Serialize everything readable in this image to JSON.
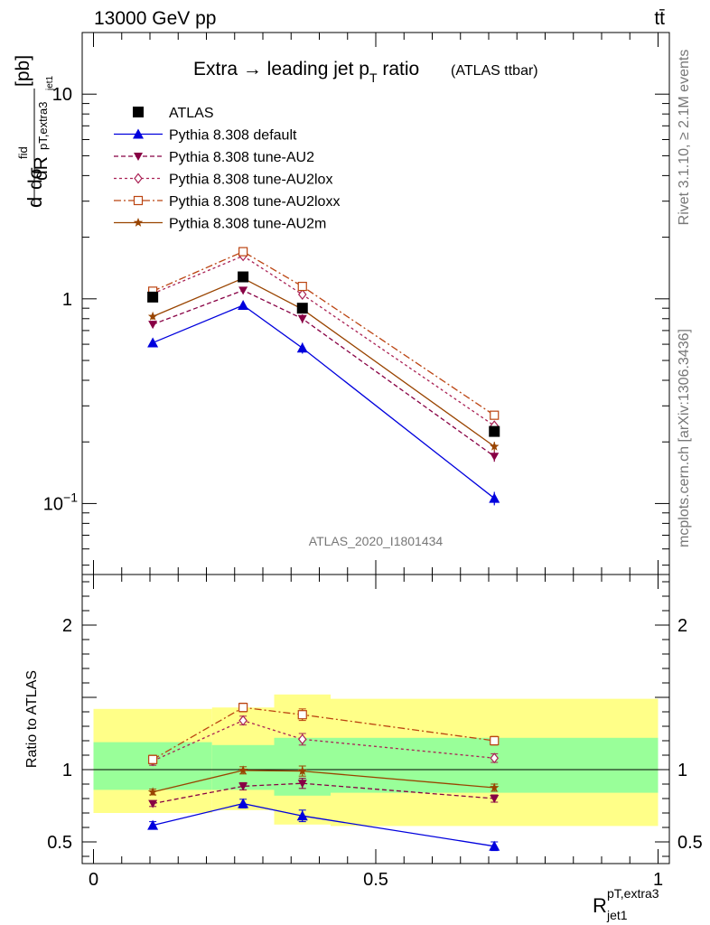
{
  "header": {
    "left": "13000 GeV pp",
    "right": "tt̄"
  },
  "title": {
    "main": "Extra → leading jet p",
    "sub": "T",
    "rest": " ratio",
    "small": "(ATLAS ttbar)"
  },
  "side_labels": {
    "rivet": "Rivet 3.1.10, ≥ 2.1M events",
    "source": "mcplots.cern.ch [arXiv:1306.3436]"
  },
  "analysis_id": "ATLAS_2020_I1801434",
  "y_label": {
    "d": "d",
    "sigma": "dσ",
    "sigma_sup": "fid",
    "sigma_sub": "pT,extra3",
    "sigma_sub2": "jet1",
    "den": "dR",
    "unit": "[pb]"
  },
  "ratio_label": "Ratio to ATLAS",
  "x_label": {
    "main": "R",
    "sup": "pT,extra3",
    "sub": "jet1"
  },
  "top_ticks": [
    {
      "value": 10,
      "label": "10"
    },
    {
      "value": 1,
      "label": "1"
    },
    {
      "value": 0.1,
      "label": "10",
      "sup": "−1"
    }
  ],
  "ratio_ticks": [
    {
      "value": 2,
      "label": "2"
    },
    {
      "value": 1,
      "label": "1"
    },
    {
      "value": 0.5,
      "label": "0.5"
    }
  ],
  "x_ticks": [
    {
      "value": 0,
      "label": "0"
    },
    {
      "value": 0.5,
      "label": "0.5"
    },
    {
      "value": 1,
      "label": "1"
    }
  ],
  "colors": {
    "data": "#000000",
    "default": "#0000dd",
    "au2": "#880044",
    "au2lox": "#aa2255",
    "au2loxx": "#bb4411",
    "au2m": "#994400",
    "band_inner": "#99ff99",
    "band_outer": "#ffff88"
  },
  "chart_data": [
    {
      "type": "line",
      "name": "main",
      "yscale": "log",
      "xlim": [
        -0.02,
        1.02
      ],
      "ylim": [
        0.045,
        20
      ],
      "x": [
        0.105,
        0.265,
        0.37,
        0.71
      ],
      "data": {
        "name": "ATLAS",
        "values": [
          1.02,
          1.28,
          0.9,
          0.225
        ]
      },
      "series": [
        {
          "key": "default",
          "name": "Pythia 8.308 default",
          "marker": "triangle-up",
          "dash": "",
          "values": [
            0.61,
            0.93,
            0.575,
            0.106
          ],
          "err": [
            0.03,
            0.04,
            0.035,
            0.008
          ]
        },
        {
          "key": "au2",
          "name": "Pythia 8.308 tune-AU2",
          "marker": "triangle-down",
          "dash": "5,3",
          "values": [
            0.75,
            1.1,
            0.8,
            0.17
          ],
          "err": [
            0.03,
            0.04,
            0.04,
            0.01
          ]
        },
        {
          "key": "au2lox",
          "name": "Pythia 8.308 tune-AU2lox",
          "marker": "diamond-open",
          "dash": "3,3",
          "values": [
            1.06,
            1.62,
            1.05,
            0.24
          ],
          "err": [
            0.04,
            0.05,
            0.05,
            0.01
          ]
        },
        {
          "key": "au2loxx",
          "name": "Pythia 8.308 tune-AU2loxx",
          "marker": "square-open",
          "dash": "8,3,2,3",
          "values": [
            1.09,
            1.7,
            1.15,
            0.27
          ],
          "err": [
            0.04,
            0.05,
            0.05,
            0.012
          ]
        },
        {
          "key": "au2m",
          "name": "Pythia 8.308 tune-AU2m",
          "marker": "star",
          "dash": "",
          "values": [
            0.82,
            1.26,
            0.89,
            0.19
          ],
          "err": [
            0.03,
            0.05,
            0.04,
            0.01
          ]
        }
      ],
      "legend": [
        {
          "key": "data",
          "label": "ATLAS"
        },
        {
          "key": "default",
          "label": "Pythia 8.308 default"
        },
        {
          "key": "au2",
          "label": "Pythia 8.308 tune-AU2"
        },
        {
          "key": "au2lox",
          "label": "Pythia 8.308 tune-AU2lox"
        },
        {
          "key": "au2loxx",
          "label": "Pythia 8.308 tune-AU2loxx"
        },
        {
          "key": "au2m",
          "label": "Pythia 8.308 tune-AU2m"
        }
      ]
    },
    {
      "type": "line",
      "name": "ratio",
      "ylabel": "Ratio to ATLAS",
      "xlabel": "R_jet1^pT,extra3",
      "xlim": [
        -0.02,
        1.02
      ],
      "ylim": [
        0.35,
        2.35
      ],
      "reference": 1,
      "bands": [
        {
          "x0": 0.0,
          "x1": 0.21,
          "inner": [
            0.86,
            1.19
          ],
          "outer": [
            0.7,
            1.42
          ]
        },
        {
          "x0": 0.21,
          "x1": 0.32,
          "inner": [
            0.86,
            1.17
          ],
          "outer": [
            0.72,
            1.43
          ]
        },
        {
          "x0": 0.32,
          "x1": 0.42,
          "inner": [
            0.82,
            1.22
          ],
          "outer": [
            0.62,
            1.52
          ]
        },
        {
          "x0": 0.42,
          "x1": 1.0,
          "inner": [
            0.84,
            1.22
          ],
          "outer": [
            0.61,
            1.49
          ]
        }
      ],
      "x": [
        0.105,
        0.265,
        0.37,
        0.71
      ],
      "series": [
        {
          "key": "default",
          "values": [
            0.615,
            0.765,
            0.68,
            0.47
          ],
          "err": [
            0.025,
            0.03,
            0.04,
            0.03
          ]
        },
        {
          "key": "au2",
          "values": [
            0.765,
            0.885,
            0.905,
            0.8
          ],
          "err": [
            0.02,
            0.025,
            0.035,
            0.025
          ]
        },
        {
          "key": "au2lox",
          "values": [
            1.06,
            1.34,
            1.21,
            1.08
          ],
          "err": [
            0.03,
            0.03,
            0.04,
            0.03
          ]
        },
        {
          "key": "au2loxx",
          "values": [
            1.07,
            1.43,
            1.38,
            1.2
          ],
          "err": [
            0.03,
            0.03,
            0.04,
            0.03
          ]
        },
        {
          "key": "au2m",
          "values": [
            0.845,
            0.995,
            0.99,
            0.875
          ],
          "err": [
            0.02,
            0.025,
            0.035,
            0.025
          ]
        }
      ]
    }
  ]
}
